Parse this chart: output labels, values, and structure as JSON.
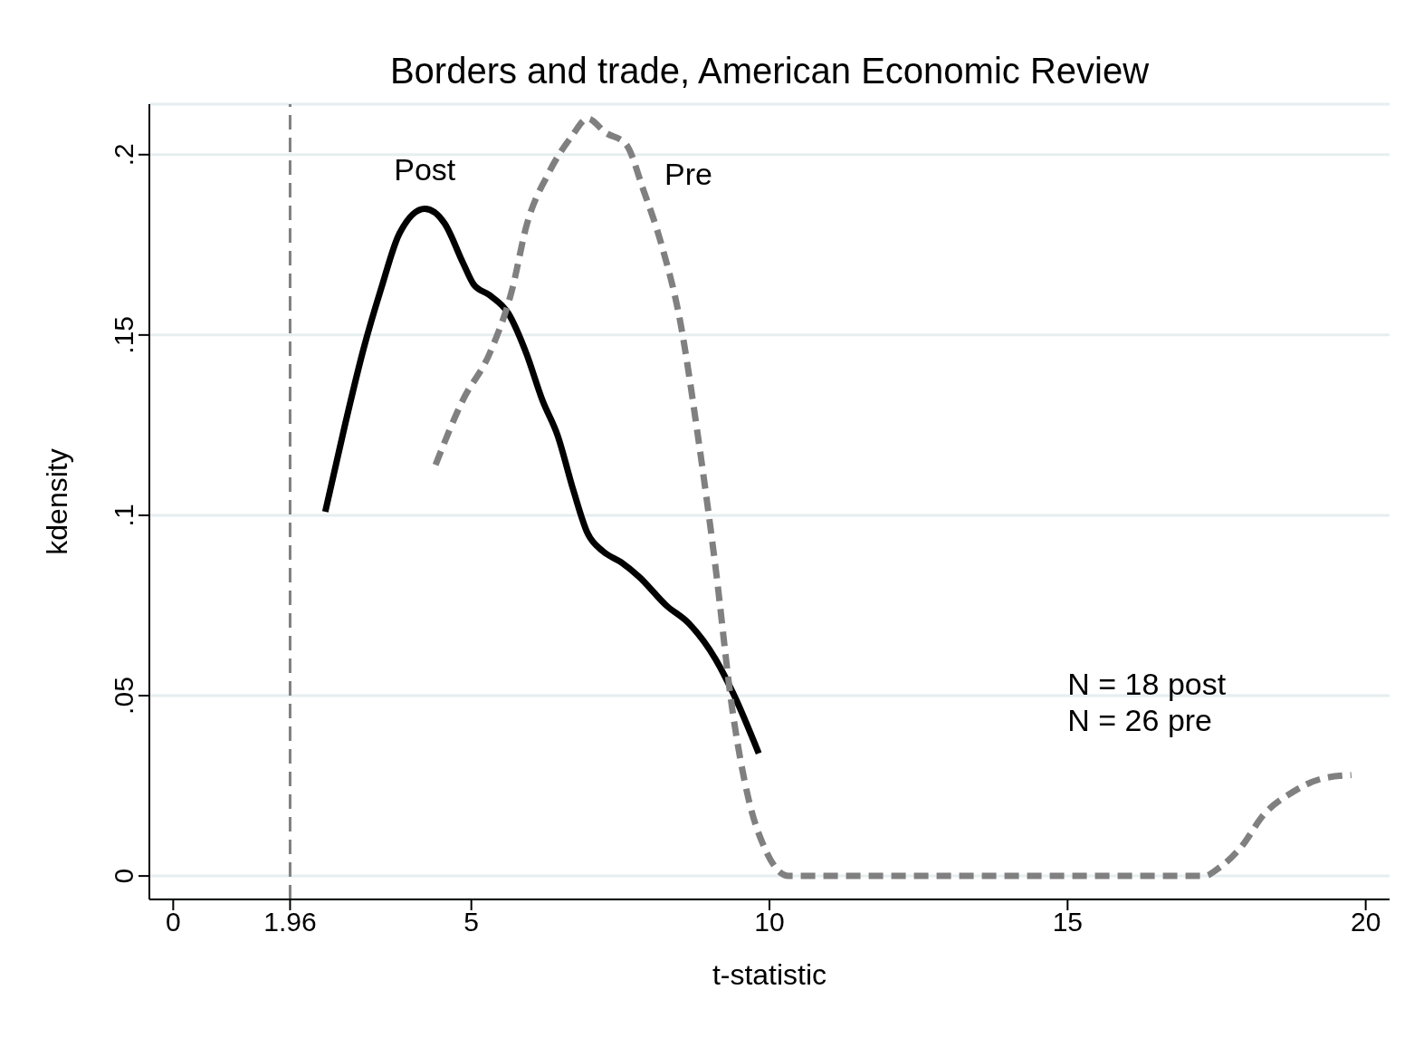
{
  "chart_data": {
    "type": "line",
    "title": "Borders and trade, American Economic Review",
    "xlabel": "t-statistic",
    "ylabel": "kdensity",
    "series": [
      {
        "name": "Post",
        "color": "#000000",
        "line_style": "solid",
        "x": [
          2.55,
          2.88,
          3.19,
          3.49,
          3.79,
          4.22,
          4.55,
          4.86,
          5.04,
          5.31,
          5.62,
          5.92,
          6.19,
          6.45,
          6.71,
          6.95,
          7.21,
          7.51,
          7.81,
          8.27,
          8.65,
          9.1,
          9.41,
          9.82
        ],
        "values": [
          0.101,
          0.125,
          0.146,
          0.163,
          0.178,
          0.185,
          0.181,
          0.17,
          0.164,
          0.161,
          0.156,
          0.145,
          0.132,
          0.122,
          0.107,
          0.095,
          0.09,
          0.087,
          0.083,
          0.075,
          0.07,
          0.06,
          0.05,
          0.034
        ]
      },
      {
        "name": "Pre",
        "color": "#808080",
        "line_style": "dashed",
        "x": [
          4.4,
          4.86,
          5.31,
          5.69,
          5.92,
          6.3,
          6.68,
          6.95,
          7.26,
          7.59,
          7.89,
          8.19,
          8.5,
          8.8,
          9.1,
          9.37,
          9.64,
          9.94,
          10.32,
          17.3,
          17.52,
          17.91,
          18.29,
          18.75,
          19.27,
          19.76
        ],
        "values": [
          0.114,
          0.132,
          0.145,
          0.163,
          0.18,
          0.195,
          0.205,
          0.21,
          0.206,
          0.203,
          0.19,
          0.175,
          0.154,
          0.122,
          0.085,
          0.047,
          0.022,
          0.007,
          0,
          0,
          0.002,
          0.008,
          0.017,
          0.023,
          0.027,
          0.028
        ]
      }
    ],
    "xlim": [
      -0.4,
      20.4
    ],
    "xticks": [
      0,
      {
        "value": 1.96,
        "label": "1.96"
      },
      5,
      10,
      15,
      20
    ],
    "ylim": [
      -0.0065,
      0.214
    ],
    "yticks": [
      0,
      {
        "value": 0.05,
        "label": ".05"
      },
      {
        "value": 0.1,
        "label": ".1"
      },
      {
        "value": 0.15,
        "label": ".15"
      },
      {
        "value": 0.2,
        "label": ".2"
      }
    ],
    "grid": "y",
    "ref_lines": [
      {
        "axis": "x",
        "value": 1.96,
        "color": "#808080",
        "line_style": "dashed"
      }
    ],
    "annotations": [
      "N = 18 post",
      "N = 26 pre"
    ]
  }
}
